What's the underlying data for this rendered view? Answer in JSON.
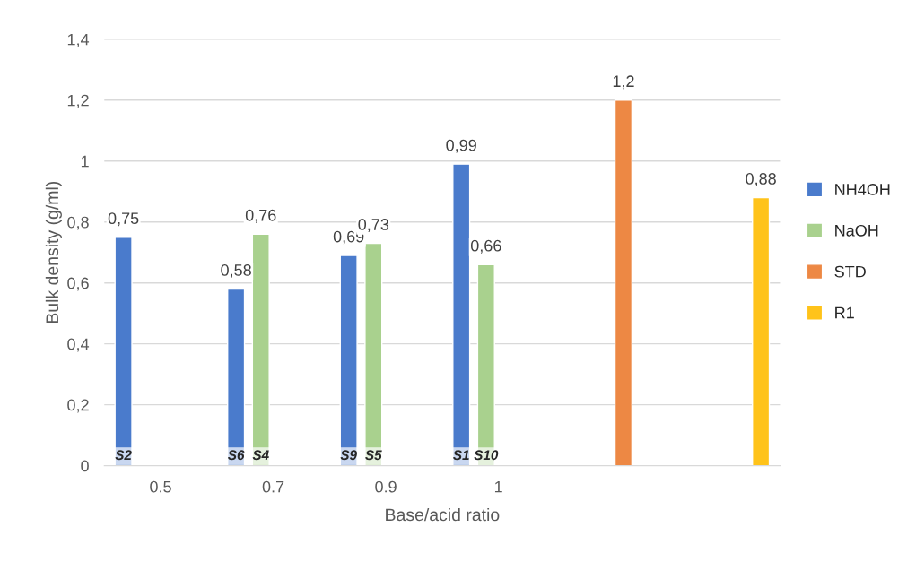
{
  "chart_data": {
    "type": "bar",
    "xlabel": "Base/acid ratio",
    "ylabel": "Bulk density (g/ml)",
    "categories": [
      "0.5",
      "0.7",
      "0.9",
      "1",
      null,
      null
    ],
    "series": [
      {
        "name": "NH4OH",
        "color": "#4a7bcc",
        "values": [
          0.75,
          0.58,
          0.69,
          0.99,
          null,
          null
        ],
        "value_labels": [
          "0,75",
          "0,58",
          "0,69",
          "0,99",
          null,
          null
        ]
      },
      {
        "name": "NaOH",
        "color": "#a9d18e",
        "values": [
          null,
          0.76,
          0.73,
          0.66,
          null,
          null
        ],
        "value_labels": [
          null,
          "0,76",
          "0,73",
          "0,66",
          null,
          null
        ]
      },
      {
        "name": "STD",
        "color": "#ed8844",
        "values": [
          null,
          null,
          null,
          null,
          1.2,
          null
        ],
        "value_labels": [
          null,
          null,
          null,
          null,
          "1,2",
          null
        ]
      },
      {
        "name": "R1",
        "color": "#ffc31a",
        "values": [
          null,
          null,
          null,
          null,
          null,
          0.88
        ],
        "value_labels": [
          null,
          null,
          null,
          null,
          null,
          "0,88"
        ]
      }
    ],
    "ylim": [
      0,
      1.4
    ],
    "yticks": [
      {
        "value": 0,
        "label": "0"
      },
      {
        "value": 0.2,
        "label": "0,2"
      },
      {
        "value": 0.4,
        "label": "0,4"
      },
      {
        "value": 0.6,
        "label": "0,6"
      },
      {
        "value": 0.8,
        "label": "0,8"
      },
      {
        "value": 1,
        "label": "1"
      },
      {
        "value": 1.2,
        "label": "1,2"
      },
      {
        "value": 1.4,
        "label": "1,4"
      }
    ],
    "grid": "y",
    "legend": "right",
    "annotations": [
      "S2",
      "S6",
      "S4",
      "S9",
      "S5",
      "S1",
      "S10"
    ]
  }
}
